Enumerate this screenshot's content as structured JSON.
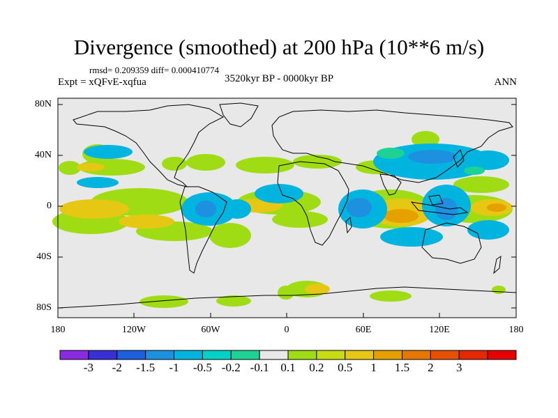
{
  "title": "Divergence (smoothed) at 200 hPa (10**6 m/s)",
  "stats": "rmsd= 0.209359 diff= 0.000410774",
  "experiment": "Expt = xQFvE-xqfua",
  "period": "3520kyr BP - 0000kyr BP",
  "season": "ANN",
  "axes": {
    "lat_ticks": [
      "80N",
      "40N",
      "0",
      "40S",
      "80S"
    ],
    "lon_ticks": [
      "180",
      "120W",
      "60W",
      "0",
      "60E",
      "120E",
      "180"
    ]
  },
  "colorbar": {
    "colors": [
      "#8a2be2",
      "#3a2fd6",
      "#1e5fe0",
      "#1e90e0",
      "#00b4e0",
      "#00d2c8",
      "#1ed296",
      "#e8e8e8",
      "#a0dc14",
      "#c8dc14",
      "#e6c814",
      "#e6a000",
      "#e67800",
      "#e65000",
      "#e62800",
      "#e60000"
    ],
    "labels": [
      "-3",
      "-2",
      "-1.5",
      "-1",
      "-0.5",
      "-0.2",
      "-0.1",
      "0.1",
      "0.2",
      "0.5",
      "1",
      "1.5",
      "2",
      "3"
    ]
  },
  "map_data": {
    "background_color": "#e8e8e8",
    "fields": [
      {
        "level": "0.2",
        "color": "#a0dc14"
      },
      {
        "level": "0.5",
        "color": "#e6c814"
      },
      {
        "level": "1",
        "color": "#e6a000"
      },
      {
        "level": "-0.2",
        "color": "#00b4e0"
      },
      {
        "level": "-0.5",
        "color": "#1e90e0"
      },
      {
        "level": "-0.1",
        "color": "#1ed296"
      }
    ]
  }
}
